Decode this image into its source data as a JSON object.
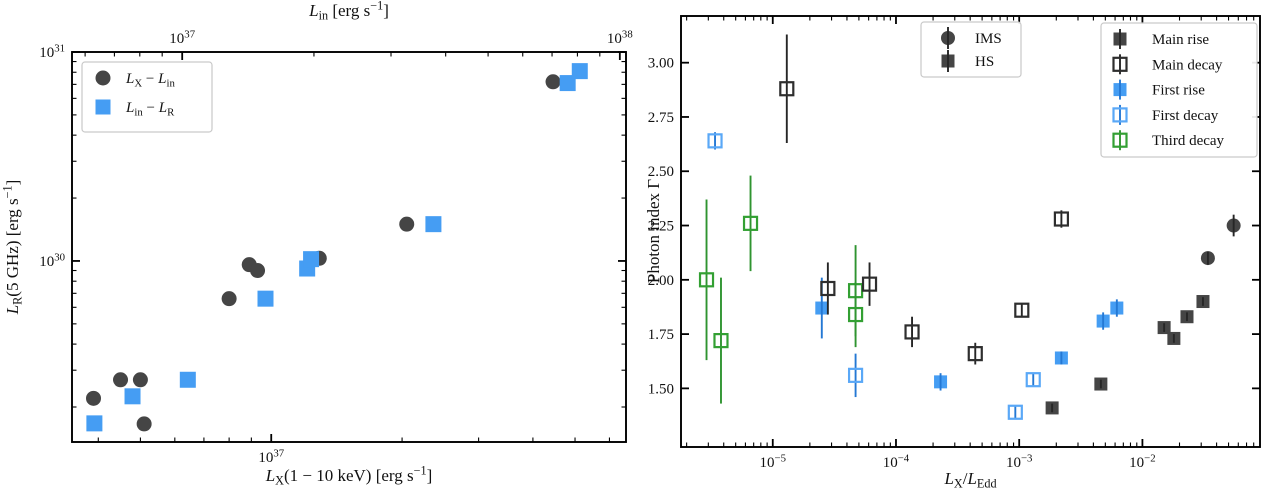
{
  "figure": {
    "background": "#ffffff",
    "palette": {
      "dark": {
        "fill": "#454545",
        "open": "#2e2e2e",
        "err": "#262626"
      },
      "blue": {
        "fill": "#459df3",
        "open": "#5aa8f7",
        "err": "#2478d4"
      },
      "green": {
        "fill": "#33a033",
        "open": "#33a033",
        "err": "#2f9430"
      }
    }
  },
  "chart_data": [
    {
      "type": "scatter",
      "panel": "left",
      "xscale": "log",
      "yscale": "log",
      "xlim": [
        3.48e+36,
        6.55e+37
      ],
      "top_xlim": [
        5.6e+36,
        1.033e+38
      ],
      "ylim": [
        1.36e+29,
        1e+31
      ],
      "xlabel_rich": [
        {
          "t": "L",
          "i": 1
        },
        {
          "t": "X",
          "sub": 1
        },
        {
          "t": "(1 − 10 keV) [erg s"
        },
        {
          "t": "−1",
          "sup": 1
        },
        {
          "t": "]"
        }
      ],
      "top_xlabel_rich": [
        {
          "t": "L",
          "i": 1
        },
        {
          "t": "in",
          "sub": 1
        },
        {
          "t": " [erg s"
        },
        {
          "t": "−1",
          "sup": 1
        },
        {
          "t": "]"
        }
      ],
      "ylabel_rich": [
        {
          "t": "L",
          "i": 1
        },
        {
          "t": "R",
          "sub": 1
        },
        {
          "t": "(5 GHz) [erg s"
        },
        {
          "t": "−1",
          "sup": 1
        },
        {
          "t": "]"
        }
      ],
      "legend": [
        {
          "label_rich": [
            {
              "t": "L",
              "i": 1
            },
            {
              "t": "X",
              "sub": 1
            },
            {
              "t": " − "
            },
            {
              "t": "L",
              "i": 1
            },
            {
              "t": "in",
              "sub": 1
            }
          ],
          "marker": "circle",
          "color": "dark"
        },
        {
          "label_rich": [
            {
              "t": "L",
              "i": 1
            },
            {
              "t": "in",
              "sub": 1
            },
            {
              "t": " − "
            },
            {
              "t": "L",
              "i": 1
            },
            {
              "t": "R",
              "sub": 1
            }
          ],
          "marker": "square",
          "color": "blue"
        }
      ],
      "series": [
        {
          "name": "LX-Lin",
          "marker": "circle",
          "style": "filled",
          "color": "dark",
          "axis": "bottom",
          "points": [
            [
              3.9e+36,
              2.2e+29
            ],
            [
              4.5e+36,
              2.7e+29
            ],
            [
              5e+36,
              2.7e+29
            ],
            [
              5.1e+36,
              1.66e+29
            ],
            [
              8e+36,
              6.6e+29
            ],
            [
              8.9e+36,
              9.6e+29
            ],
            [
              9.3e+36,
              9e+29
            ],
            [
              1.29e+37,
              1.03e+30
            ],
            [
              2.05e+37,
              1.5e+30
            ],
            [
              4.45e+37,
              7.2e+30
            ]
          ]
        },
        {
          "name": "Lin-LR",
          "marker": "square",
          "style": "filled",
          "color": "blue",
          "axis": "top",
          "points": [
            [
              6.3e+36,
              1.67e+29
            ],
            [
              7.7e+36,
              2.25e+29
            ],
            [
              1.03e+37,
              2.7e+29
            ],
            [
              1.55e+37,
              6.6e+29
            ],
            [
              1.93e+37,
              9.2e+29
            ],
            [
              1.97e+37,
              1.02e+30
            ],
            [
              3.75e+37,
              1.5e+30
            ],
            [
              7.6e+37,
              7.1e+30
            ],
            [
              8.1e+37,
              8.1e+30
            ]
          ]
        }
      ]
    },
    {
      "type": "scatter",
      "panel": "right",
      "xscale": "log",
      "yscale": "linear",
      "xlim": [
        1.8e-06,
        0.09
      ],
      "ylim": [
        1.23,
        3.215
      ],
      "yticks": [
        1.5,
        1.75,
        2.0,
        2.25,
        2.5,
        2.75,
        3.0
      ],
      "xlabel_rich": [
        {
          "t": "L",
          "i": 1
        },
        {
          "t": "X",
          "sub": 1
        },
        {
          "t": "/"
        },
        {
          "t": "L",
          "i": 1
        },
        {
          "t": "Edd",
          "sub": 1
        }
      ],
      "ylabel_rich": [
        {
          "t": "Photon index Γ"
        }
      ],
      "legend_states": [
        {
          "label": "IMS",
          "marker": "circle",
          "style": "filled",
          "color": "dark"
        },
        {
          "label": "HS",
          "marker": "square",
          "style": "filled",
          "color": "dark"
        }
      ],
      "legend_phases": [
        {
          "label": "Main rise",
          "marker": "square",
          "style": "filled",
          "color": "dark"
        },
        {
          "label": "Main decay",
          "marker": "square",
          "style": "open",
          "color": "dark"
        },
        {
          "label": "First rise",
          "marker": "square",
          "style": "filled",
          "color": "blue"
        },
        {
          "label": "First decay",
          "marker": "square",
          "style": "open",
          "color": "blue"
        },
        {
          "label": "Third decay",
          "marker": "square",
          "style": "open",
          "color": "green"
        }
      ],
      "series": [
        {
          "name": "Third decay",
          "marker": "square",
          "style": "open",
          "color": "green",
          "points": [
            [
              2.9e-06,
              2.0,
              0.37
            ],
            [
              3.8e-06,
              1.72,
              0.29
            ],
            [
              6.6e-06,
              2.26,
              0.22
            ],
            [
              4.7e-05,
              1.95,
              0.21
            ],
            [
              4.7e-05,
              1.84,
              0.15
            ]
          ]
        },
        {
          "name": "First rise",
          "marker": "square",
          "style": "filled",
          "color": "blue",
          "points": [
            [
              2.5e-05,
              1.87,
              0.14
            ],
            [
              0.00023,
              1.53,
              0.04
            ],
            [
              0.0022,
              1.64,
              0.03
            ],
            [
              0.0048,
              1.81,
              0.04
            ],
            [
              0.0062,
              1.87,
              0.04
            ]
          ]
        },
        {
          "name": "First decay",
          "marker": "square",
          "style": "open",
          "color": "blue",
          "points": [
            [
              3.4e-06,
              2.64,
              0.04
            ],
            [
              4.7e-05,
              1.56,
              0.1
            ],
            [
              0.00093,
              1.39,
              0.03
            ],
            [
              0.0013,
              1.54,
              0.03
            ]
          ]
        },
        {
          "name": "Main decay",
          "marker": "square",
          "style": "open",
          "color": "dark",
          "points": [
            [
              1.3e-05,
              2.88,
              0.25
            ],
            [
              2.8e-05,
              1.96,
              0.12
            ],
            [
              6.1e-05,
              1.98,
              0.1
            ],
            [
              0.000135,
              1.76,
              0.07
            ],
            [
              0.00044,
              1.66,
              0.05
            ],
            [
              0.00105,
              1.86,
              0.03
            ],
            [
              0.0022,
              2.28,
              0.04
            ]
          ]
        },
        {
          "name": "Main rise",
          "marker": "square",
          "style": "filled",
          "color": "dark",
          "points": [
            [
              0.00185,
              1.41,
              0.02
            ],
            [
              0.0046,
              1.52,
              0.02
            ],
            [
              0.015,
              1.78,
              0.02
            ],
            [
              0.018,
              1.73,
              0.02
            ],
            [
              0.023,
              1.83,
              0.02
            ],
            [
              0.031,
              1.9,
              0.02
            ]
          ]
        },
        {
          "name": "IMS",
          "marker": "circle",
          "style": "filled",
          "color": "dark",
          "points": [
            [
              0.034,
              2.1,
              0.03
            ],
            [
              0.055,
              2.25,
              0.05
            ]
          ]
        }
      ]
    }
  ]
}
